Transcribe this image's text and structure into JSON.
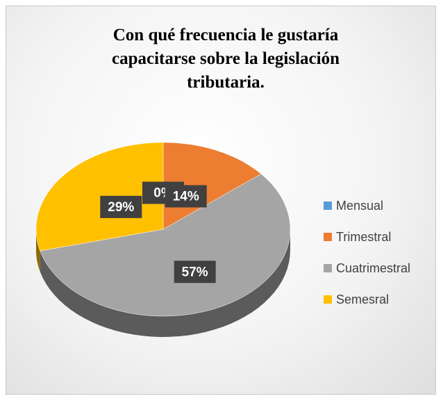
{
  "chart_data": {
    "type": "pie",
    "title": "Con qué frecuencia le gustaría capacitarse sobre la legislación tributaria.",
    "categories": [
      "Mensual",
      "Trimestral",
      "Cuatrimestral",
      "Semesral"
    ],
    "values": [
      0,
      14,
      57,
      29
    ],
    "value_labels": [
      "0%",
      "14%",
      "57%",
      "29%"
    ],
    "colors": [
      "#5b9bd5",
      "#ed7d31",
      "#a5a5a5",
      "#ffc000"
    ],
    "legend": "right"
  }
}
